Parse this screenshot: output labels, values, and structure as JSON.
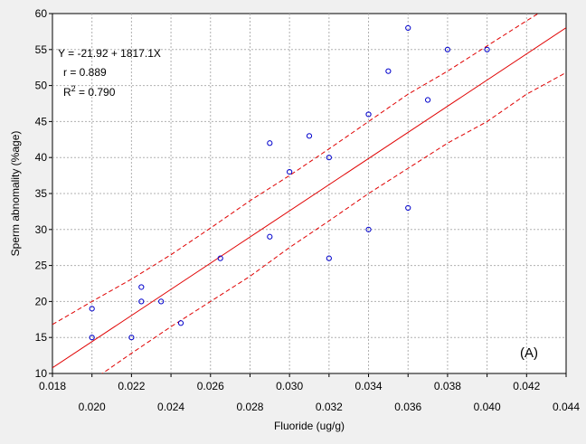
{
  "chart_data": {
    "type": "scatter",
    "title": "",
    "xlabel": "Fluoride (ug/g)",
    "ylabel": "Sperm abnomality (%age)",
    "xlim": [
      0.018,
      0.044
    ],
    "ylim": [
      10,
      60
    ],
    "x_ticks_upper": [
      "0.018",
      "0.022",
      "0.026",
      "0.030",
      "0.034",
      "0.038",
      "0.042"
    ],
    "x_ticks_lower": [
      "0.020",
      "0.024",
      "0.028",
      "0.032",
      "0.036",
      "0.040",
      "0.044"
    ],
    "y_ticks": [
      "10",
      "15",
      "20",
      "25",
      "30",
      "35",
      "40",
      "45",
      "50",
      "55",
      "60"
    ],
    "grid": true,
    "points": [
      {
        "x": 0.02,
        "y": 19
      },
      {
        "x": 0.02,
        "y": 15
      },
      {
        "x": 0.022,
        "y": 15
      },
      {
        "x": 0.0225,
        "y": 22
      },
      {
        "x": 0.0225,
        "y": 20
      },
      {
        "x": 0.0235,
        "y": 20
      },
      {
        "x": 0.0245,
        "y": 17
      },
      {
        "x": 0.0265,
        "y": 26
      },
      {
        "x": 0.029,
        "y": 42
      },
      {
        "x": 0.029,
        "y": 29
      },
      {
        "x": 0.03,
        "y": 38
      },
      {
        "x": 0.031,
        "y": 43
      },
      {
        "x": 0.032,
        "y": 40
      },
      {
        "x": 0.032,
        "y": 26
      },
      {
        "x": 0.034,
        "y": 46
      },
      {
        "x": 0.034,
        "y": 30
      },
      {
        "x": 0.035,
        "y": 52
      },
      {
        "x": 0.036,
        "y": 58
      },
      {
        "x": 0.036,
        "y": 33
      },
      {
        "x": 0.037,
        "y": 48
      },
      {
        "x": 0.038,
        "y": 55
      },
      {
        "x": 0.04,
        "y": 55
      }
    ],
    "regression": {
      "intercept": -21.92,
      "slope": 1817.1
    },
    "confidence_band": {
      "x": [
        0.018,
        0.02,
        0.022,
        0.024,
        0.026,
        0.028,
        0.03,
        0.032,
        0.034,
        0.036,
        0.038,
        0.04,
        0.042,
        0.044
      ],
      "upper": [
        16.8,
        20.0,
        23.1,
        26.5,
        30.2,
        34.0,
        37.5,
        41.2,
        45.0,
        48.8,
        52.0,
        55.5,
        59.0,
        62.4
      ],
      "lower": [
        5.0,
        9.0,
        12.8,
        16.5,
        20.0,
        23.5,
        27.5,
        31.2,
        35.0,
        38.5,
        42.0,
        45.0,
        48.8,
        51.8
      ]
    },
    "annotations": {
      "equation": "Y = -21.92 + 1817.1X",
      "r": "r = 0.889",
      "r2_prefix": "R",
      "r2_sup": "2",
      "r2_value": " = 0.790",
      "panel_label": "(A)"
    },
    "colors": {
      "fit": "#e00000",
      "points": "#0000cc",
      "grid": "#b0b0b0",
      "background": "#ffffff"
    }
  }
}
